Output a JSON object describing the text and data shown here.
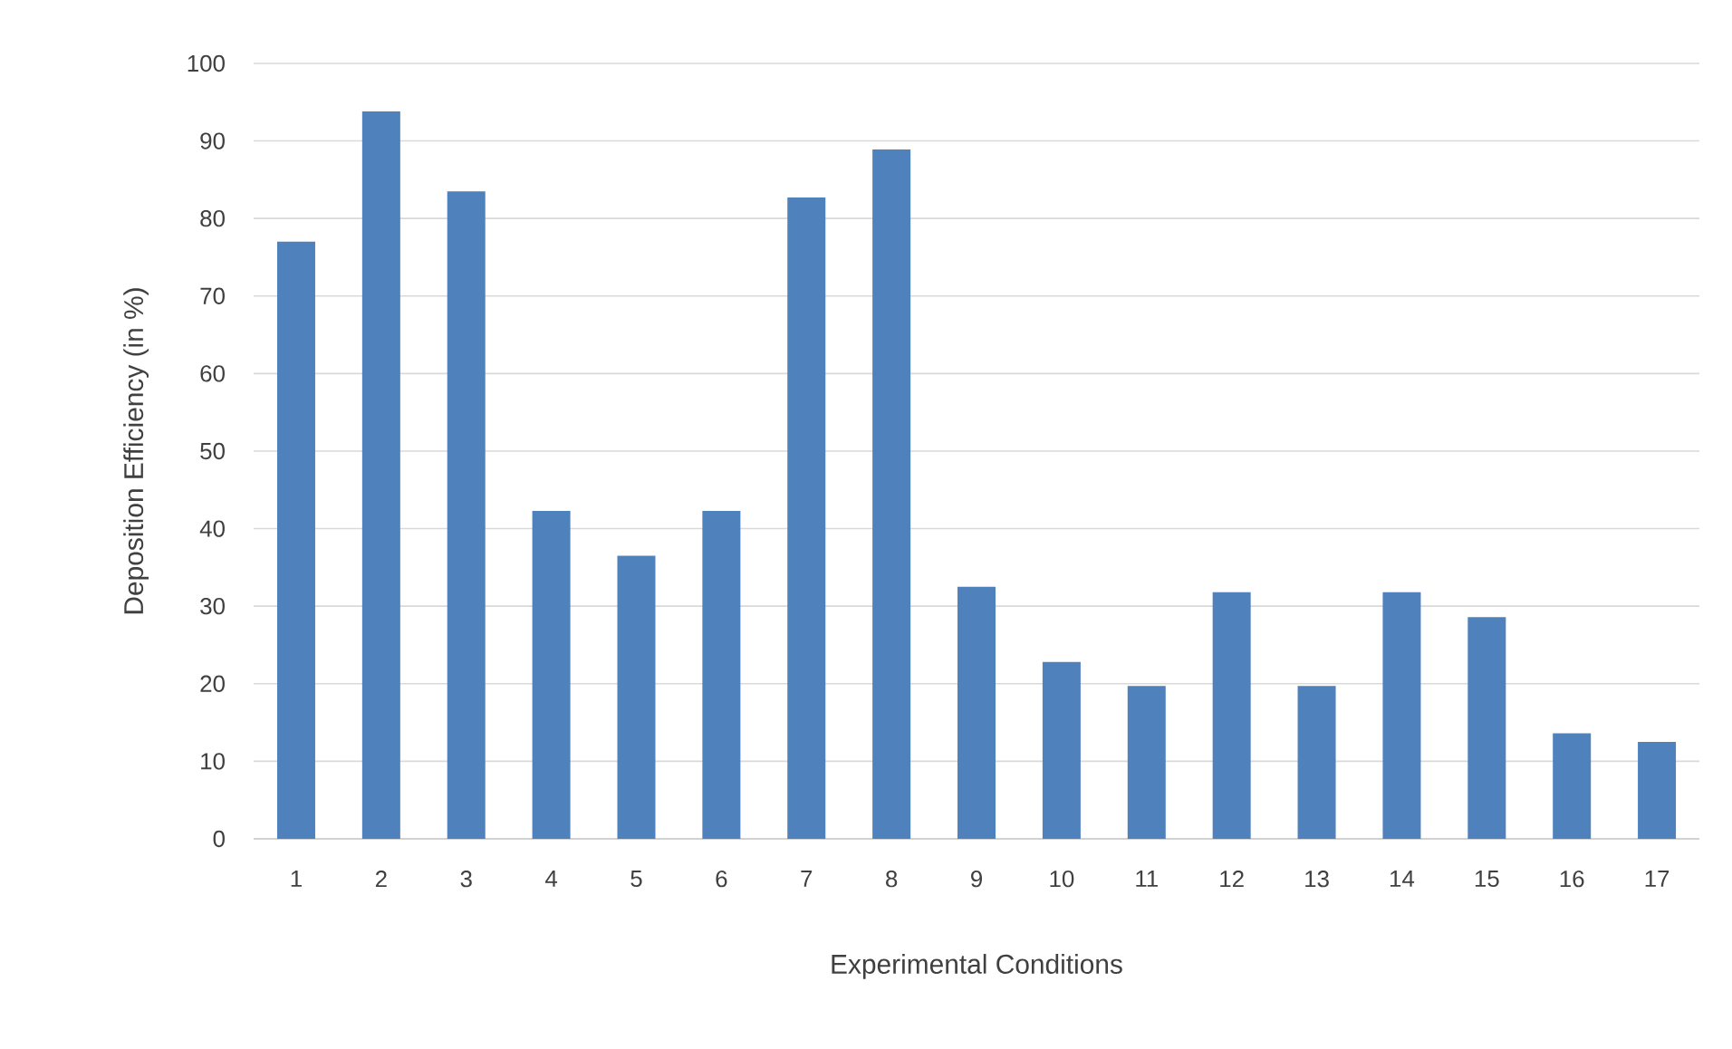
{
  "chart_data": {
    "type": "bar",
    "xlabel": "Experimental Conditions",
    "ylabel": "Deposition Efficiency (in %)",
    "categories": [
      "1",
      "2",
      "3",
      "4",
      "5",
      "6",
      "7",
      "8",
      "9",
      "10",
      "11",
      "12",
      "13",
      "14",
      "15",
      "16",
      "17"
    ],
    "values": [
      77.0,
      93.8,
      83.5,
      42.3,
      36.5,
      42.3,
      82.7,
      88.9,
      32.5,
      22.8,
      19.7,
      31.8,
      19.7,
      31.8,
      28.6,
      13.6,
      12.5
    ],
    "color": "#4f81bd",
    "ylim": [
      0,
      100
    ],
    "yticks": [
      0,
      10,
      20,
      30,
      40,
      50,
      60,
      70,
      80,
      90,
      100
    ],
    "grid": "y"
  }
}
